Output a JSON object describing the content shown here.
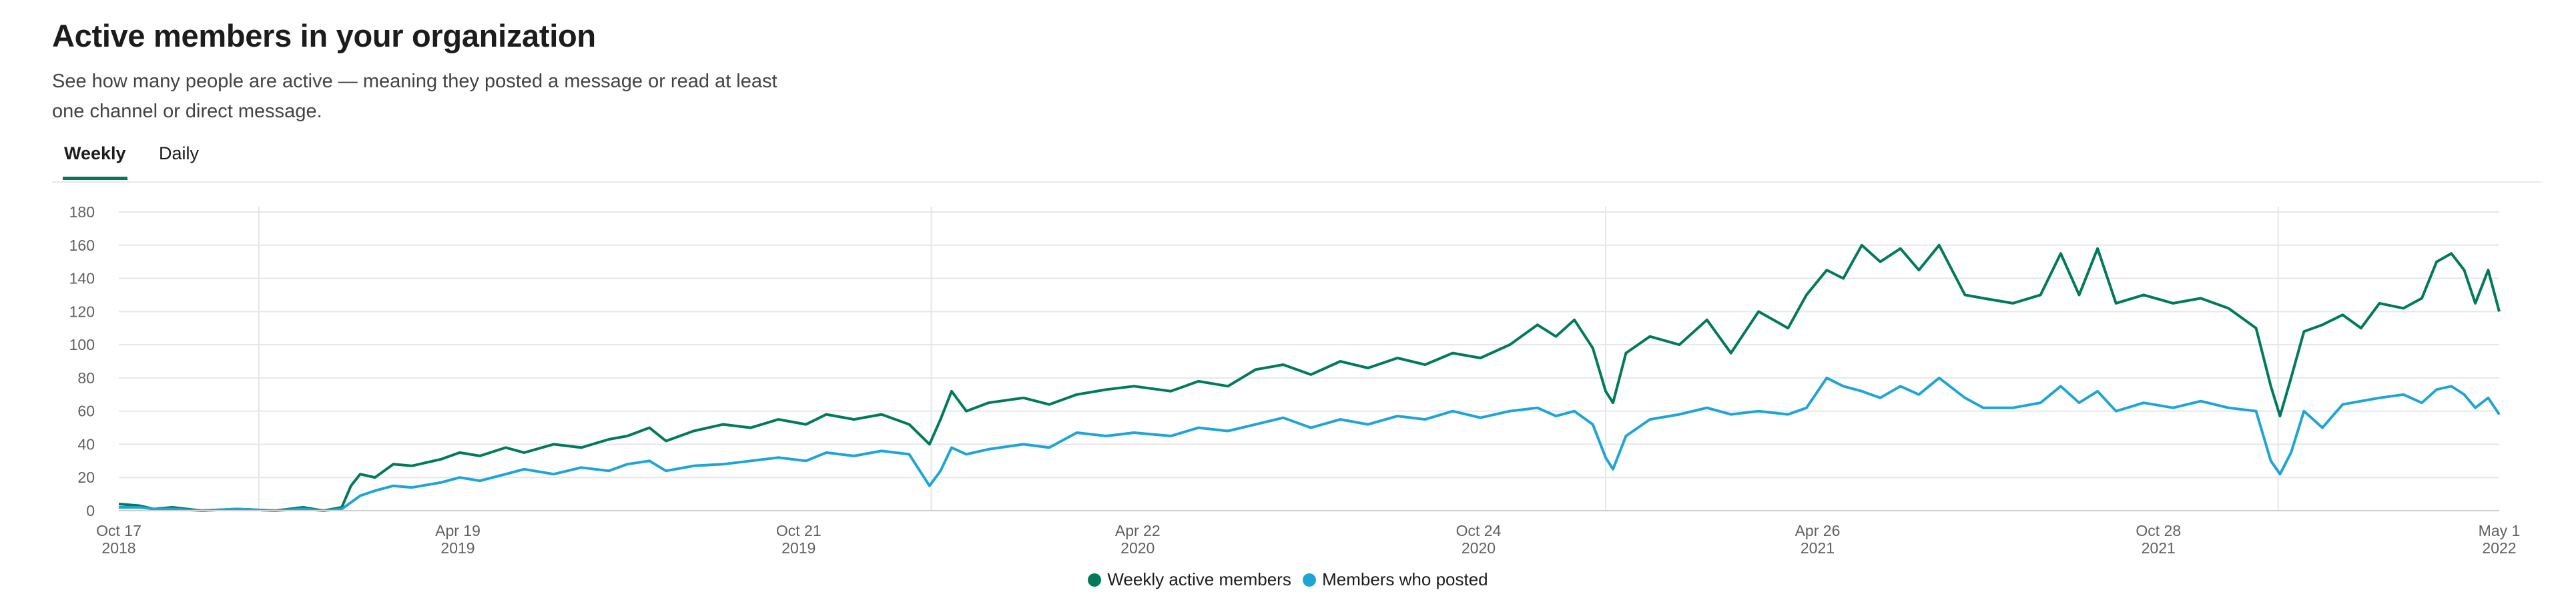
{
  "page": {
    "title": "Active members in your organization",
    "description": "See how many people are active — meaning they posted a message or read at least one channel or direct message."
  },
  "tabs": [
    {
      "label": "Weekly",
      "active": true
    },
    {
      "label": "Daily",
      "active": false
    }
  ],
  "colors": {
    "weekly_active": "#007a5a",
    "posted": "#1fa5d5",
    "grid": "#e6e6e6",
    "axis_text": "#616061"
  },
  "chart_data": {
    "type": "line",
    "x_type": "date",
    "xlim": [
      "2018-10-17",
      "2022-05-01"
    ],
    "ylim": [
      0,
      180
    ],
    "y_ticks": [
      0,
      20,
      40,
      60,
      80,
      100,
      120,
      140,
      160,
      180
    ],
    "grid": true,
    "legend_position": "bottom-center",
    "x_ticks": [
      {
        "date": "2018-10-17",
        "label": "Oct 17",
        "sub": "2018"
      },
      {
        "date": "2019-04-19",
        "label": "Apr 19",
        "sub": "2019"
      },
      {
        "date": "2019-10-21",
        "label": "Oct 21",
        "sub": "2019"
      },
      {
        "date": "2020-04-22",
        "label": "Apr 22",
        "sub": "2020"
      },
      {
        "date": "2020-10-24",
        "label": "Oct 24",
        "sub": "2020"
      },
      {
        "date": "2021-04-26",
        "label": "Apr 26",
        "sub": "2021"
      },
      {
        "date": "2021-10-28",
        "label": "Oct 28",
        "sub": "2021"
      },
      {
        "date": "2022-05-01",
        "label": "May 1",
        "sub": "2022"
      }
    ],
    "vertical_markers": [
      "2019-01-01",
      "2020-01-01",
      "2021-01-01",
      "2022-01-01"
    ],
    "series": [
      {
        "name": "Weekly active members",
        "color": "#007a5a",
        "points": [
          [
            "2018-10-17",
            4
          ],
          [
            "2018-10-28",
            3
          ],
          [
            "2018-11-05",
            1
          ],
          [
            "2018-11-15",
            2
          ],
          [
            "2018-12-01",
            0
          ],
          [
            "2018-12-20",
            1
          ],
          [
            "2019-01-10",
            0
          ],
          [
            "2019-01-25",
            2
          ],
          [
            "2019-02-05",
            0
          ],
          [
            "2019-02-15",
            2
          ],
          [
            "2019-02-20",
            15
          ],
          [
            "2019-02-25",
            22
          ],
          [
            "2019-03-05",
            20
          ],
          [
            "2019-03-15",
            28
          ],
          [
            "2019-03-25",
            27
          ],
          [
            "2019-04-10",
            31
          ],
          [
            "2019-04-20",
            35
          ],
          [
            "2019-05-01",
            33
          ],
          [
            "2019-05-15",
            38
          ],
          [
            "2019-05-25",
            35
          ],
          [
            "2019-06-10",
            40
          ],
          [
            "2019-06-25",
            38
          ],
          [
            "2019-07-10",
            43
          ],
          [
            "2019-07-20",
            45
          ],
          [
            "2019-08-01",
            50
          ],
          [
            "2019-08-10",
            42
          ],
          [
            "2019-08-25",
            48
          ],
          [
            "2019-09-10",
            52
          ],
          [
            "2019-09-25",
            50
          ],
          [
            "2019-10-10",
            55
          ],
          [
            "2019-10-25",
            52
          ],
          [
            "2019-11-05",
            58
          ],
          [
            "2019-11-20",
            55
          ],
          [
            "2019-12-05",
            58
          ],
          [
            "2019-12-20",
            52
          ],
          [
            "2019-12-31",
            40
          ],
          [
            "2020-01-06",
            55
          ],
          [
            "2020-01-12",
            72
          ],
          [
            "2020-01-20",
            60
          ],
          [
            "2020-02-01",
            65
          ],
          [
            "2020-02-20",
            68
          ],
          [
            "2020-03-05",
            64
          ],
          [
            "2020-03-20",
            70
          ],
          [
            "2020-04-05",
            73
          ],
          [
            "2020-04-20",
            75
          ],
          [
            "2020-05-10",
            72
          ],
          [
            "2020-05-25",
            78
          ],
          [
            "2020-06-10",
            75
          ],
          [
            "2020-06-25",
            85
          ],
          [
            "2020-07-10",
            88
          ],
          [
            "2020-07-25",
            82
          ],
          [
            "2020-08-10",
            90
          ],
          [
            "2020-08-25",
            86
          ],
          [
            "2020-09-10",
            92
          ],
          [
            "2020-09-25",
            88
          ],
          [
            "2020-10-10",
            95
          ],
          [
            "2020-10-25",
            92
          ],
          [
            "2020-11-10",
            100
          ],
          [
            "2020-11-25",
            112
          ],
          [
            "2020-12-05",
            105
          ],
          [
            "2020-12-15",
            115
          ],
          [
            "2020-12-25",
            98
          ],
          [
            "2021-01-01",
            72
          ],
          [
            "2021-01-05",
            65
          ],
          [
            "2021-01-12",
            95
          ],
          [
            "2021-01-25",
            105
          ],
          [
            "2021-02-10",
            100
          ],
          [
            "2021-02-25",
            115
          ],
          [
            "2021-03-10",
            95
          ],
          [
            "2021-03-25",
            120
          ],
          [
            "2021-04-10",
            110
          ],
          [
            "2021-04-20",
            130
          ],
          [
            "2021-05-01",
            145
          ],
          [
            "2021-05-10",
            140
          ],
          [
            "2021-05-20",
            160
          ],
          [
            "2021-05-30",
            150
          ],
          [
            "2021-06-10",
            158
          ],
          [
            "2021-06-20",
            145
          ],
          [
            "2021-07-01",
            160
          ],
          [
            "2021-07-15",
            130
          ],
          [
            "2021-07-25",
            128
          ],
          [
            "2021-08-10",
            125
          ],
          [
            "2021-08-25",
            130
          ],
          [
            "2021-09-05",
            155
          ],
          [
            "2021-09-15",
            130
          ],
          [
            "2021-09-25",
            158
          ],
          [
            "2021-10-05",
            125
          ],
          [
            "2021-10-20",
            130
          ],
          [
            "2021-11-05",
            125
          ],
          [
            "2021-11-20",
            128
          ],
          [
            "2021-12-05",
            122
          ],
          [
            "2021-12-20",
            110
          ],
          [
            "2021-12-28",
            75
          ],
          [
            "2022-01-02",
            57
          ],
          [
            "2022-01-08",
            80
          ],
          [
            "2022-01-15",
            108
          ],
          [
            "2022-01-25",
            112
          ],
          [
            "2022-02-05",
            118
          ],
          [
            "2022-02-15",
            110
          ],
          [
            "2022-02-25",
            125
          ],
          [
            "2022-03-10",
            122
          ],
          [
            "2022-03-20",
            128
          ],
          [
            "2022-03-28",
            150
          ],
          [
            "2022-04-05",
            155
          ],
          [
            "2022-04-12",
            145
          ],
          [
            "2022-04-18",
            125
          ],
          [
            "2022-04-25",
            145
          ],
          [
            "2022-05-01",
            120
          ]
        ]
      },
      {
        "name": "Members who posted",
        "color": "#1fa5d5",
        "points": [
          [
            "2018-10-17",
            2
          ],
          [
            "2018-10-28",
            2
          ],
          [
            "2018-11-05",
            1
          ],
          [
            "2018-11-15",
            1
          ],
          [
            "2018-12-01",
            0
          ],
          [
            "2018-12-20",
            1
          ],
          [
            "2019-01-10",
            0
          ],
          [
            "2019-01-25",
            1
          ],
          [
            "2019-02-05",
            0
          ],
          [
            "2019-02-15",
            1
          ],
          [
            "2019-02-20",
            5
          ],
          [
            "2019-02-25",
            9
          ],
          [
            "2019-03-05",
            12
          ],
          [
            "2019-03-15",
            15
          ],
          [
            "2019-03-25",
            14
          ],
          [
            "2019-04-10",
            17
          ],
          [
            "2019-04-20",
            20
          ],
          [
            "2019-05-01",
            18
          ],
          [
            "2019-05-15",
            22
          ],
          [
            "2019-05-25",
            25
          ],
          [
            "2019-06-10",
            22
          ],
          [
            "2019-06-25",
            26
          ],
          [
            "2019-07-10",
            24
          ],
          [
            "2019-07-20",
            28
          ],
          [
            "2019-08-01",
            30
          ],
          [
            "2019-08-10",
            24
          ],
          [
            "2019-08-25",
            27
          ],
          [
            "2019-09-10",
            28
          ],
          [
            "2019-09-25",
            30
          ],
          [
            "2019-10-10",
            32
          ],
          [
            "2019-10-25",
            30
          ],
          [
            "2019-11-05",
            35
          ],
          [
            "2019-11-20",
            33
          ],
          [
            "2019-12-05",
            36
          ],
          [
            "2019-12-20",
            34
          ],
          [
            "2019-12-31",
            15
          ],
          [
            "2020-01-06",
            24
          ],
          [
            "2020-01-12",
            38
          ],
          [
            "2020-01-20",
            34
          ],
          [
            "2020-02-01",
            37
          ],
          [
            "2020-02-20",
            40
          ],
          [
            "2020-03-05",
            38
          ],
          [
            "2020-03-20",
            47
          ],
          [
            "2020-04-05",
            45
          ],
          [
            "2020-04-20",
            47
          ],
          [
            "2020-05-10",
            45
          ],
          [
            "2020-05-25",
            50
          ],
          [
            "2020-06-10",
            48
          ],
          [
            "2020-06-25",
            52
          ],
          [
            "2020-07-10",
            56
          ],
          [
            "2020-07-25",
            50
          ],
          [
            "2020-08-10",
            55
          ],
          [
            "2020-08-25",
            52
          ],
          [
            "2020-09-10",
            57
          ],
          [
            "2020-09-25",
            55
          ],
          [
            "2020-10-10",
            60
          ],
          [
            "2020-10-25",
            56
          ],
          [
            "2020-11-10",
            60
          ],
          [
            "2020-11-25",
            62
          ],
          [
            "2020-12-05",
            57
          ],
          [
            "2020-12-15",
            60
          ],
          [
            "2020-12-25",
            52
          ],
          [
            "2021-01-01",
            32
          ],
          [
            "2021-01-05",
            25
          ],
          [
            "2021-01-12",
            45
          ],
          [
            "2021-01-25",
            55
          ],
          [
            "2021-02-10",
            58
          ],
          [
            "2021-02-25",
            62
          ],
          [
            "2021-03-10",
            58
          ],
          [
            "2021-03-25",
            60
          ],
          [
            "2021-04-10",
            58
          ],
          [
            "2021-04-20",
            62
          ],
          [
            "2021-05-01",
            80
          ],
          [
            "2021-05-10",
            75
          ],
          [
            "2021-05-20",
            72
          ],
          [
            "2021-05-30",
            68
          ],
          [
            "2021-06-10",
            75
          ],
          [
            "2021-06-20",
            70
          ],
          [
            "2021-07-01",
            80
          ],
          [
            "2021-07-15",
            68
          ],
          [
            "2021-07-25",
            62
          ],
          [
            "2021-08-10",
            62
          ],
          [
            "2021-08-25",
            65
          ],
          [
            "2021-09-05",
            75
          ],
          [
            "2021-09-15",
            65
          ],
          [
            "2021-09-25",
            72
          ],
          [
            "2021-10-05",
            60
          ],
          [
            "2021-10-20",
            65
          ],
          [
            "2021-11-05",
            62
          ],
          [
            "2021-11-20",
            66
          ],
          [
            "2021-12-05",
            62
          ],
          [
            "2021-12-20",
            60
          ],
          [
            "2021-12-28",
            30
          ],
          [
            "2022-01-02",
            22
          ],
          [
            "2022-01-08",
            35
          ],
          [
            "2022-01-15",
            60
          ],
          [
            "2022-01-25",
            50
          ],
          [
            "2022-02-05",
            64
          ],
          [
            "2022-02-15",
            66
          ],
          [
            "2022-02-25",
            68
          ],
          [
            "2022-03-10",
            70
          ],
          [
            "2022-03-20",
            65
          ],
          [
            "2022-03-28",
            73
          ],
          [
            "2022-04-05",
            75
          ],
          [
            "2022-04-12",
            70
          ],
          [
            "2022-04-18",
            62
          ],
          [
            "2022-04-25",
            68
          ],
          [
            "2022-05-01",
            58
          ]
        ]
      }
    ]
  }
}
